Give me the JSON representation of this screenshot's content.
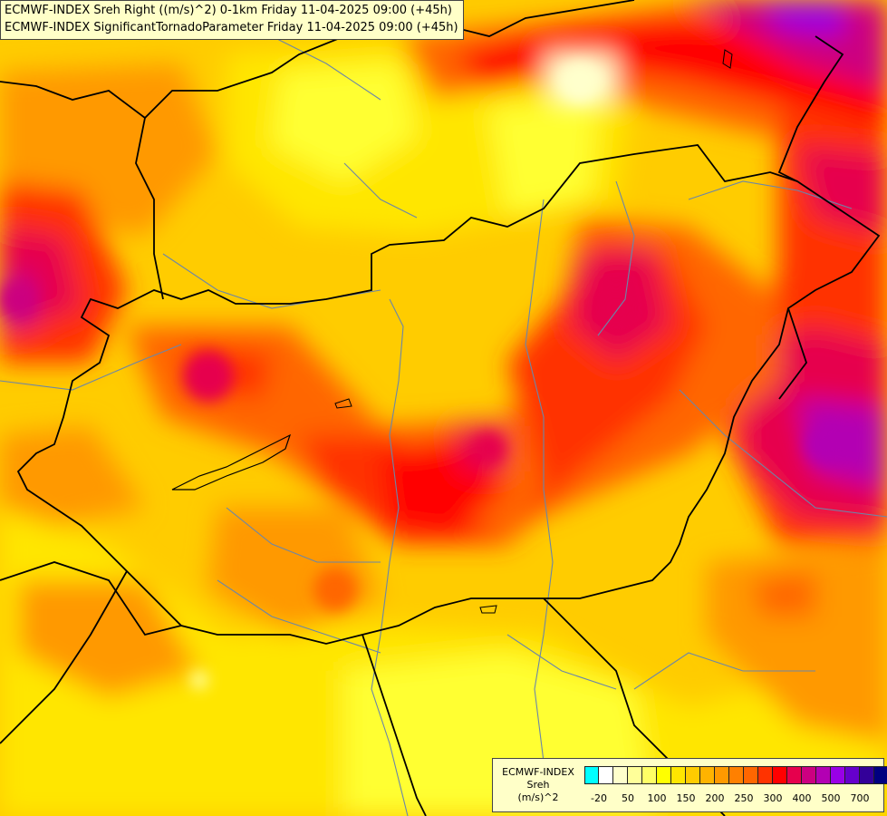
{
  "header": {
    "line1": "ECMWF-INDEX Sreh Right ((m/s)^2) 0-1km Friday 11-04-2025 09:00 (+45h)",
    "line2": "ECMWF-INDEX SignificantTornadoParameter Friday 11-04-2025 09:00 (+45h)"
  },
  "legend": {
    "title_line1": "ECMWF-INDEX",
    "title_line2": "Sreh",
    "title_line3": "(m/s)^2",
    "colors": [
      "#00ffff",
      "#ffffff",
      "#ffffcc",
      "#ffff99",
      "#ffff66",
      "#ffff00",
      "#ffe600",
      "#ffcc00",
      "#ffb300",
      "#ff9900",
      "#ff8000",
      "#ff6600",
      "#ff3300",
      "#ff0000",
      "#e6004d",
      "#cc0080",
      "#b300b3",
      "#9900e6",
      "#6600cc",
      "#330099",
      "#000080"
    ],
    "tick_labels": [
      "-20",
      "50",
      "100",
      "150",
      "200",
      "250",
      "300",
      "400",
      "500",
      "700"
    ]
  },
  "map": {
    "base_color": "#ffcc00",
    "border_color": "#000000",
    "river_color": "#6b86a8"
  }
}
